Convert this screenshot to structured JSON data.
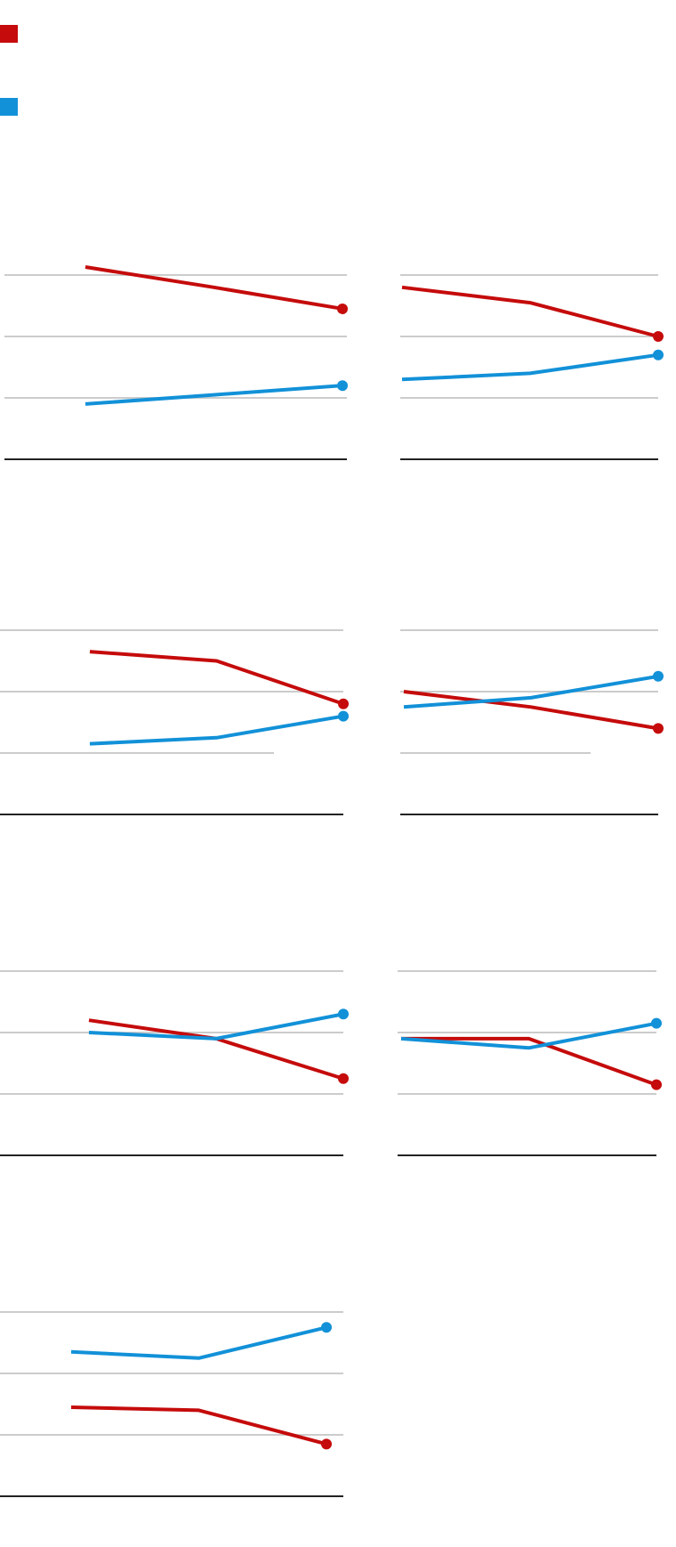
{
  "colors": {
    "red": "#c50b0b",
    "blue": "#1291d8",
    "grid": "#cccccc",
    "axis": "#222222"
  },
  "legend": [
    {
      "color": "#c50b0b",
      "name": ""
    },
    {
      "color": "#1291d8",
      "name": ""
    }
  ],
  "chart_data": [
    {
      "type": "line",
      "title": "",
      "x": [
        1,
        2,
        3
      ],
      "ylim": [
        0,
        4
      ],
      "grid": true,
      "series": [
        {
          "color": "#c50b0b",
          "values": [
            3.13,
            2.8,
            2.45
          ]
        },
        {
          "color": "#1291d8",
          "values": [
            0.9,
            1.05,
            1.2
          ]
        }
      ]
    },
    {
      "type": "line",
      "title": "",
      "x": [
        1,
        2,
        3
      ],
      "ylim": [
        0,
        4
      ],
      "grid": true,
      "series": [
        {
          "color": "#c50b0b",
          "values": [
            2.8,
            2.55,
            2.0
          ]
        },
        {
          "color": "#1291d8",
          "values": [
            1.3,
            1.4,
            1.7
          ]
        }
      ]
    },
    {
      "type": "line",
      "title": "",
      "x": [
        1,
        2,
        3
      ],
      "ylim": [
        0,
        4
      ],
      "grid": true,
      "series": [
        {
          "color": "#c50b0b",
          "values": [
            2.65,
            2.5,
            1.8
          ]
        },
        {
          "color": "#1291d8",
          "values": [
            1.15,
            1.25,
            1.6
          ]
        }
      ]
    },
    {
      "type": "line",
      "title": "",
      "x": [
        1,
        2,
        3
      ],
      "ylim": [
        0,
        4
      ],
      "grid": true,
      "series": [
        {
          "color": "#c50b0b",
          "values": [
            2.0,
            1.75,
            1.4
          ]
        },
        {
          "color": "#1291d8",
          "values": [
            1.75,
            1.9,
            2.25
          ]
        }
      ]
    },
    {
      "type": "line",
      "title": "",
      "x": [
        1,
        2,
        3
      ],
      "ylim": [
        0,
        4
      ],
      "grid": true,
      "series": [
        {
          "color": "#c50b0b",
          "values": [
            2.2,
            1.9,
            1.25
          ]
        },
        {
          "color": "#1291d8",
          "values": [
            2.0,
            1.9,
            2.3
          ]
        }
      ]
    },
    {
      "type": "line",
      "title": "",
      "x": [
        1,
        2,
        3
      ],
      "ylim": [
        0,
        4
      ],
      "grid": true,
      "series": [
        {
          "color": "#c50b0b",
          "values": [
            1.9,
            1.9,
            1.15
          ]
        },
        {
          "color": "#1291d8",
          "values": [
            1.9,
            1.75,
            2.15
          ]
        }
      ]
    },
    {
      "type": "line",
      "title": "",
      "x": [
        1,
        2,
        3
      ],
      "ylim": [
        0,
        4
      ],
      "grid": true,
      "series": [
        {
          "color": "#c50b0b",
          "values": [
            1.45,
            1.4,
            0.85
          ]
        },
        {
          "color": "#1291d8",
          "values": [
            2.35,
            2.25,
            2.75
          ]
        }
      ]
    }
  ]
}
